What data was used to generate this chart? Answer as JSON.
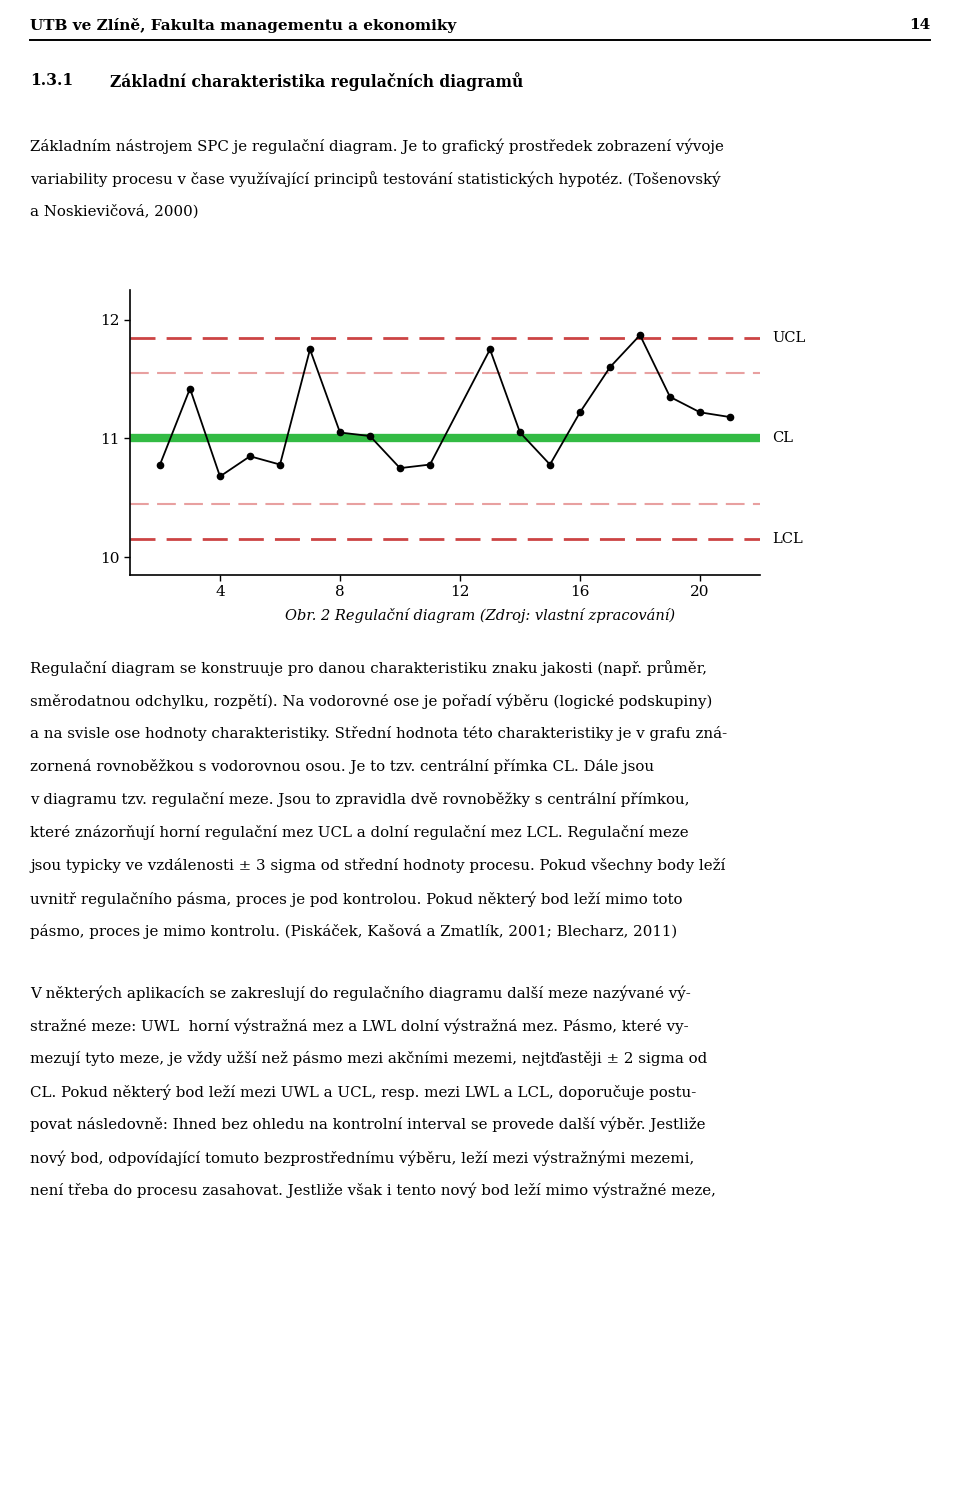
{
  "page_number": "14",
  "header": "UTB ve Zlíně, Fakulta managementu a ekonomiky",
  "section_num": "1.3.1",
  "section_title": "Základní charakteristika regulačních diagramů",
  "para1_lines": [
    "Základním nástrojem SPC je regulační diagram. Je to grafický prostředek zobrazení vývoje",
    "variability procesu v čase využívající principů testování statistických hypotéz. (Tošenovský",
    "a Noskievičová, 2000)"
  ],
  "chart": {
    "xlim": [
      1,
      22
    ],
    "ylim": [
      9.85,
      12.25
    ],
    "xticks": [
      4,
      8,
      12,
      16,
      20
    ],
    "yticks": [
      10,
      11,
      12
    ],
    "UCL": 11.85,
    "UWL": 11.55,
    "CL": 11.0,
    "LWL": 10.45,
    "LCL": 10.15,
    "data_x": [
      2,
      3,
      4,
      5,
      6,
      7,
      8,
      9,
      10,
      11,
      13,
      14,
      15,
      16,
      17,
      18,
      19,
      20,
      21
    ],
    "data_y": [
      10.78,
      11.42,
      10.68,
      10.85,
      10.78,
      11.75,
      11.05,
      11.02,
      10.75,
      10.78,
      11.75,
      11.05,
      10.78,
      11.22,
      11.6,
      11.87,
      11.35,
      11.22,
      11.18
    ],
    "line_color": "#000000",
    "CL_color": "#33bb44",
    "UCL_color": "#cc4444",
    "LCL_color": "#cc4444",
    "UWL_color": "#e8a0a0",
    "LWL_color": "#e8a0a0",
    "marker_size": 4.5,
    "UCL_label": "UCL",
    "CL_label": "CL",
    "LCL_label": "LCL"
  },
  "caption": "Obr. 2 Regulační diagram (Zdroj: vlastní zpracování)",
  "para2_lines": [
    "Regulační diagram se konstruuje pro danou charakteristiku znaku jakosti (např. průměr,",
    "směrodatnou odchylku, rozpětí). Na vodorovné ose je pořadí výběru (logické podskupiny)",
    "a na svisle ose hodnoty charakteristiky. Střední hodnota této charakteristiky je v grafu zná-",
    "zornená rovnoběžkou s vodorovnou osou. Je to tzv. centrální přímka CL. Dále jsou",
    "v diagramu tzv. regulační meze. Jsou to zpravidla dvě rovnoběžky s centrální přímkou,",
    "které znázorňují horní regulační mez UCL a dolní regulační mez LCL. Regulační meze",
    "jsou typicky ve vzdálenosti ± 3 sigma od střední hodnoty procesu. Pokud všechny body leží",
    "uvnitř regulačního pásma, proces je pod kontrolou. Pokud některý bod leží mimo toto",
    "pásmo, proces je mimo kontrolu. (Piskáček, Kašová a Zmatlík, 2001; Blecharz, 2011)"
  ],
  "para3_lines": [
    "V některých aplikacích se zakreslují do regulačního diagramu další meze nazývané vý-",
    "stražné meze: UWL  horní výstražná mez a LWL dolní výstražná mez. Pásmo, které vy-",
    "mezují tyto meze, je vždy užší než pásmo mezi akčními mezemi, nejtďastěji ± 2 sigma od",
    "CL. Pokud některý bod leží mezi UWL a UCL, resp. mezi LWL a LCL, doporučuje postu-",
    "povat následovně: Ihned bez ohledu na kontrolní interval se provede další výběr. Jestliže",
    "nový bod, odpovídající tomuto bezprostřednímu výběru, leží mezi výstražnými mezemi,",
    "není třeba do procesu zasahovat. Jestliže však i tento nový bod leží mimo výstražné meze,"
  ]
}
